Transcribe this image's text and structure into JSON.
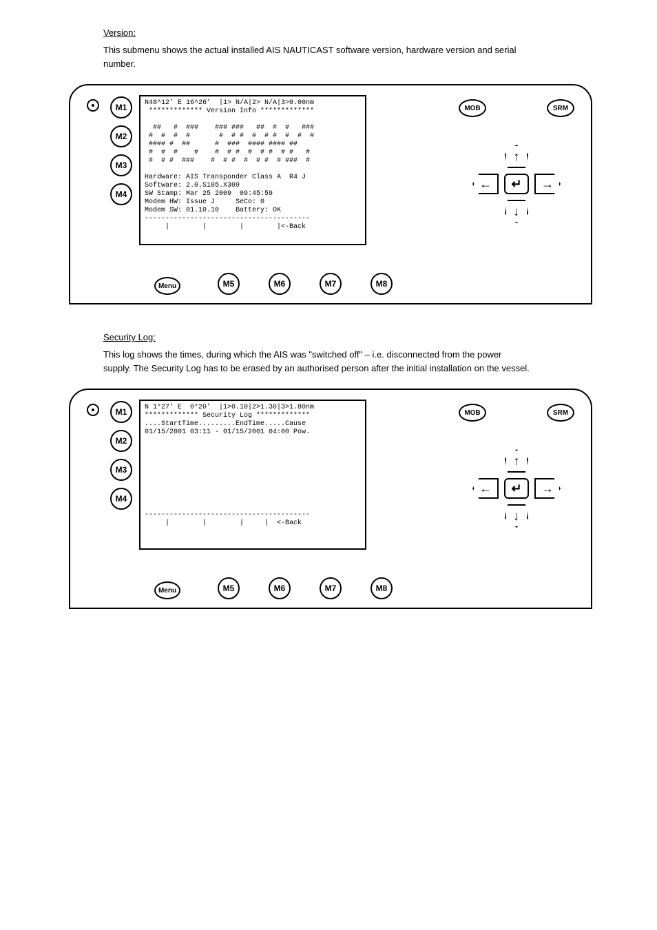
{
  "section1": {
    "heading": "Version:",
    "body": "This submenu shows the actual installed AIS NAUTICAST software version, hardware version and serial number."
  },
  "section2": {
    "heading": "Security Log:",
    "body": "This log shows the times, during which the AIS was \"switched off\" – i.e. disconnected from the power supply. The Security Log has to be erased by an authorised person after the initial installation on the vessel."
  },
  "device_common": {
    "side_buttons": [
      "M1",
      "M2",
      "M3",
      "M4"
    ],
    "bottom_buttons": [
      "M5",
      "M6",
      "M7",
      "M8"
    ],
    "menu_label": "Menu",
    "mob_label": "MOB",
    "srm_label": "SRM"
  },
  "screen1": {
    "lines": [
      "N48^12' E 16^26'  |1> N/A|2> N/A|3>0.00nm",
      " ************* Version Info *************",
      "",
      "  ##   #  ###    ### ###   ##  #  #   ###",
      " #  #  #  #       #  # #  #  # #  #  #  #",
      " #### #  ##      #  ###  #### #### ##",
      " #  #  #    #    #  # #  #  # #  # #   #",
      " #  # #  ###    #  # #  #  # #  # ###  #",
      "",
      "Hardware: AIS Transponder Class A  R4 J",
      "Software: 2.0.S105.X309",
      "SW Stamp: Mar 25 2009  09:45:59",
      "Modem HW: Issue J     SeCo: 0",
      "Modem SW: 01.10.10    Battery: OK",
      "----------------------------------------",
      "     |        |        |        |<-Back"
    ]
  },
  "screen2": {
    "lines": [
      "N 1°27' E  0°20'  |1>0.10|2>1.30|3>1.80nm",
      "************* Security Log *************",
      "....StartTime.........EndTime.....Cause",
      "01/15/2001 03:11 - 01/15/2001 04:00 Pow.",
      "",
      "",
      "",
      "",
      "",
      "",
      "",
      "",
      "",
      "----------------------------------------",
      "     |        |        |     |  <-Back"
    ]
  }
}
